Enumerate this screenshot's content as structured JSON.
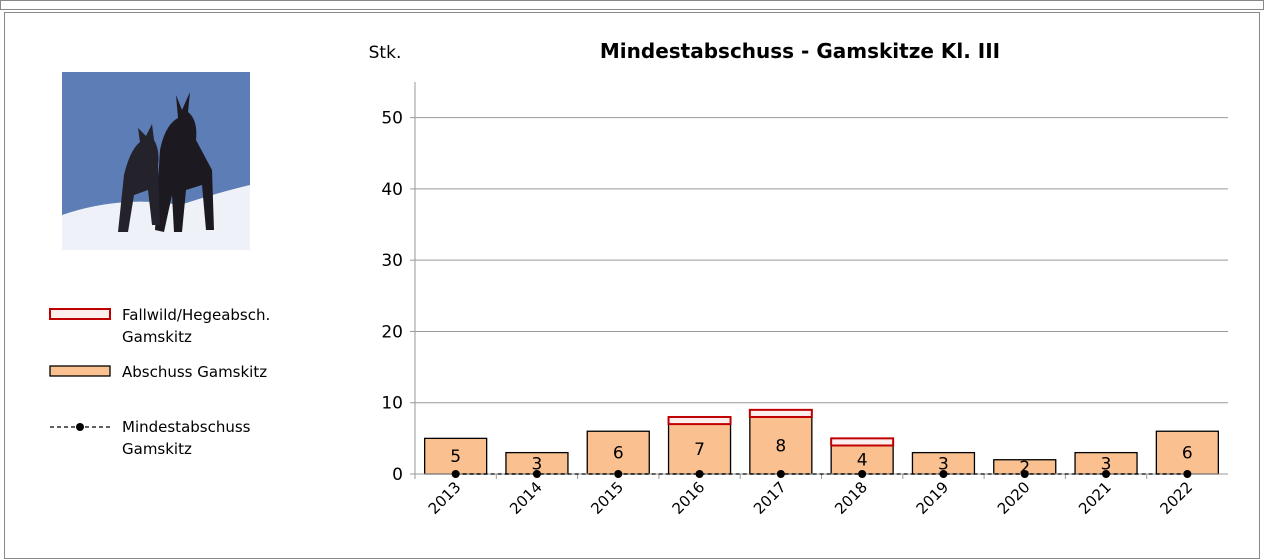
{
  "chart_data": {
    "type": "bar",
    "title": "Mindestabschuss - Gamskitze Kl. III",
    "y_label": "Stk.",
    "categories": [
      "2013",
      "2014",
      "2015",
      "2016",
      "2017",
      "2018",
      "2019",
      "2020",
      "2021",
      "2022"
    ],
    "series": [
      {
        "name": "Fallwild/Hegeabsch. Gamskitz",
        "color": "#c00000",
        "values": [
          0,
          0,
          0,
          1,
          1,
          1,
          0,
          0,
          0,
          0
        ]
      },
      {
        "name": "Abschuss Gamskitz",
        "color": "#fac090",
        "values": [
          5,
          3,
          6,
          7,
          8,
          4,
          3,
          2,
          3,
          6
        ]
      },
      {
        "name": "Mindestabschuss Gamskitz",
        "color": "#000000",
        "values": [
          0,
          0,
          0,
          0,
          0,
          0,
          0,
          0,
          0,
          0
        ]
      }
    ],
    "ylim": [
      0,
      55
    ],
    "yticks": [
      0,
      10,
      20,
      30,
      40,
      50
    ],
    "grid": true
  }
}
